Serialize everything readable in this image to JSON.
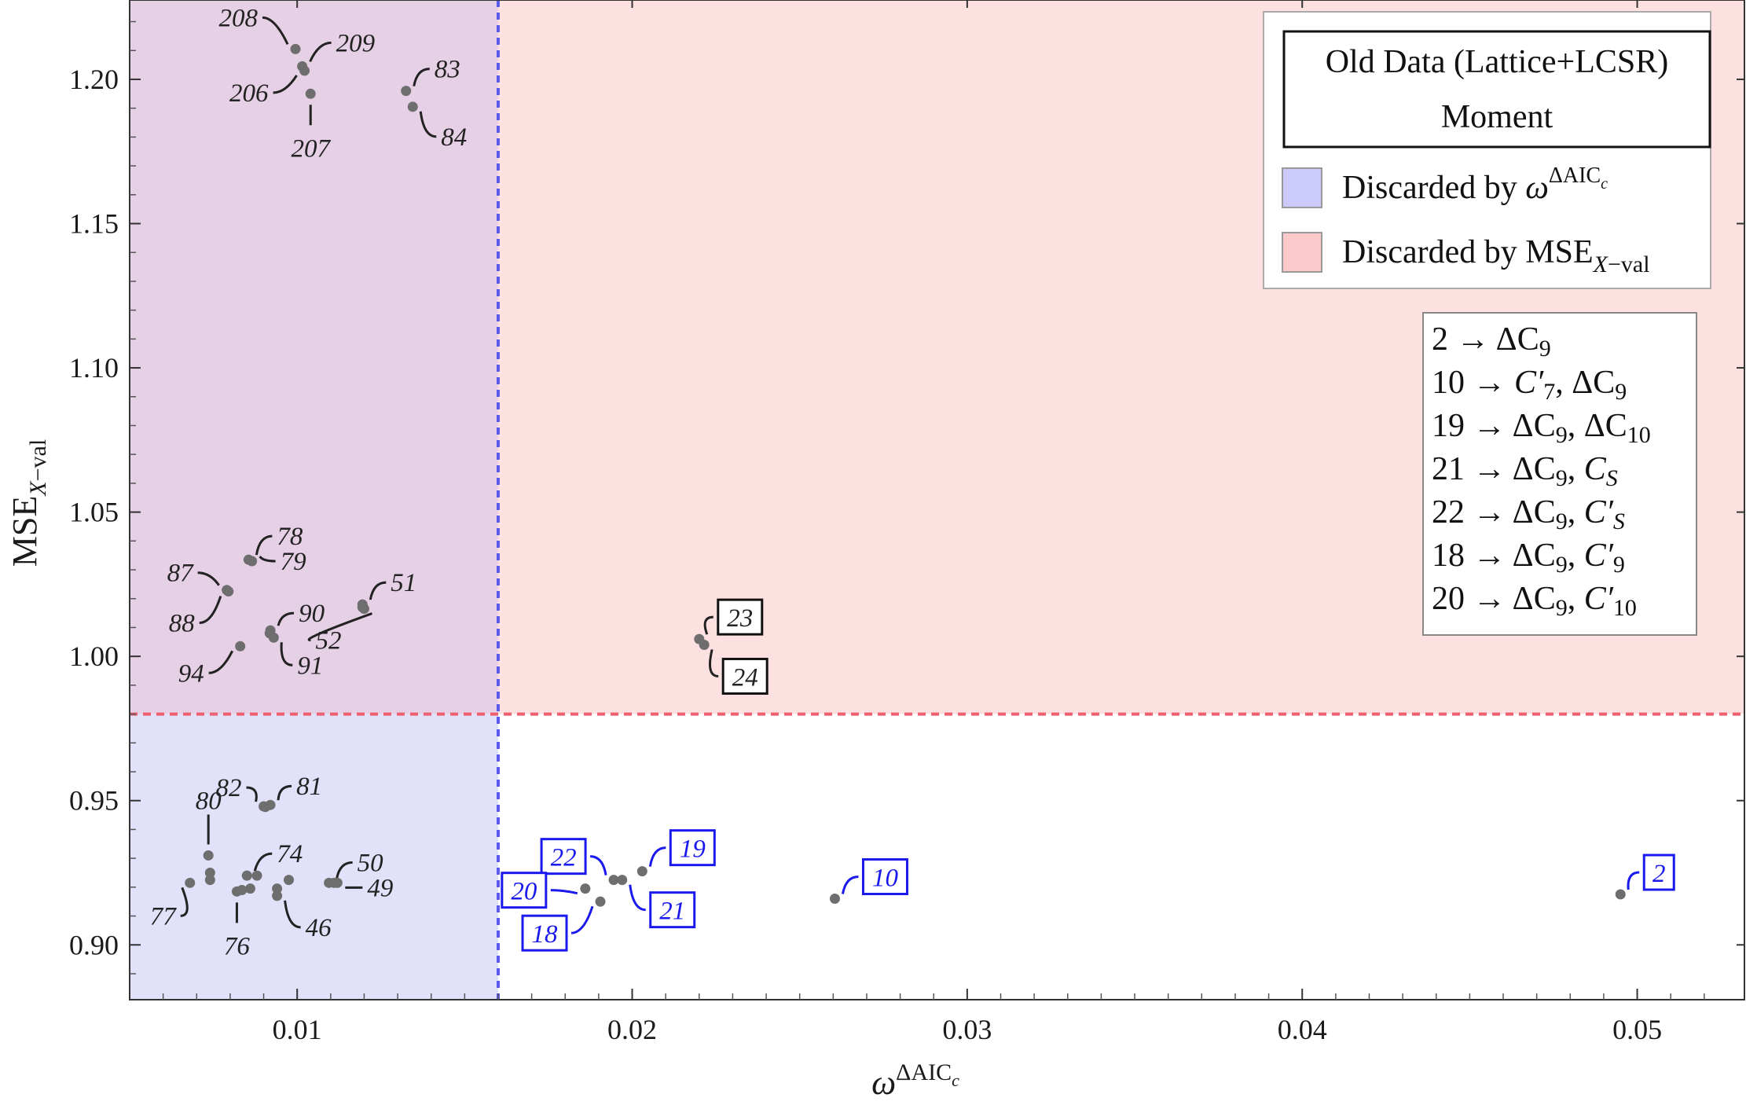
{
  "chart_data": {
    "type": "scatter",
    "xlabel": "ω^{ΔAIC_c}",
    "ylabel": "MSE_{X-val}",
    "xlim": [
      0.005,
      0.0532
    ],
    "ylim": [
      0.881,
      1.2275
    ],
    "x_ticks": [
      0.01,
      0.02,
      0.03,
      0.04,
      0.05
    ],
    "x_tick_labels": [
      "0.01",
      "0.02",
      "0.03",
      "0.04",
      "0.05"
    ],
    "y_ticks": [
      0.9,
      0.95,
      1.0,
      1.05,
      1.1,
      1.15,
      1.2
    ],
    "y_tick_labels": [
      "0.90",
      "0.95",
      "1.00",
      "1.05",
      "1.10",
      "1.15",
      "1.20"
    ],
    "thresholds": {
      "omega": 0.016,
      "mse": 0.98
    },
    "colors": {
      "blue_region": "#e1e1fa",
      "red_region": "#fde1e1",
      "overlap_region": "#e6d0e5",
      "blue_line": "#5a5aee",
      "red_line": "#ee6070",
      "point": "#6e6e6e",
      "blue_label": "#1a1aee"
    },
    "points": [
      {
        "id": "208",
        "x": 0.00995,
        "y": 1.2105
      },
      {
        "id": "209",
        "x": 0.01015,
        "y": 1.2045
      },
      {
        "id": "206",
        "x": 0.01022,
        "y": 1.203
      },
      {
        "id": "207",
        "x": 0.0104,
        "y": 1.195
      },
      {
        "id": "83",
        "x": 0.01325,
        "y": 1.196
      },
      {
        "id": "84",
        "x": 0.01345,
        "y": 1.1905
      },
      {
        "id": "78",
        "x": 0.00855,
        "y": 1.0335
      },
      {
        "id": "79",
        "x": 0.00865,
        "y": 1.033
      },
      {
        "id": "87",
        "x": 0.0079,
        "y": 1.023
      },
      {
        "id": "88",
        "x": 0.00795,
        "y": 1.0225
      },
      {
        "id": "51",
        "x": 0.01195,
        "y": 1.018
      },
      {
        "id": "52",
        "x": 0.012,
        "y": 1.0165
      },
      {
        "id": "90",
        "x": 0.0092,
        "y": 1.009
      },
      {
        "id": "91",
        "x": 0.0093,
        "y": 1.0065
      },
      {
        "id": "94",
        "x": 0.0083,
        "y": 1.0035
      },
      {
        "id": "82",
        "x": 0.009,
        "y": 0.948
      },
      {
        "id": "81",
        "x": 0.0092,
        "y": 0.9485
      },
      {
        "id": "80",
        "x": 0.00735,
        "y": 0.931
      },
      {
        "id": "74",
        "x": 0.0085,
        "y": 0.924
      },
      {
        "id": "50",
        "x": 0.01095,
        "y": 0.9215
      },
      {
        "id": "49",
        "x": 0.0112,
        "y": 0.9215
      },
      {
        "id": "77",
        "x": 0.0068,
        "y": 0.9215
      },
      {
        "id": "76",
        "x": 0.0082,
        "y": 0.9185
      },
      {
        "id": "46",
        "x": 0.0094,
        "y": 0.917
      },
      {
        "id": "22",
        "x": 0.01945,
        "y": 0.9225
      },
      {
        "id": "19",
        "x": 0.0203,
        "y": 0.9255
      },
      {
        "id": "20",
        "x": 0.0186,
        "y": 0.9195
      },
      {
        "id": "21",
        "x": 0.0197,
        "y": 0.9225
      },
      {
        "id": "18",
        "x": 0.01905,
        "y": 0.915
      },
      {
        "id": "23",
        "x": 0.022,
        "y": 1.006
      },
      {
        "id": "24",
        "x": 0.02215,
        "y": 1.004
      },
      {
        "id": "10",
        "x": 0.02605,
        "y": 0.916
      },
      {
        "id": "2",
        "x": 0.0495,
        "y": 0.9175
      }
    ],
    "extra_points": [
      {
        "x": 0.0074,
        "y": 0.9225
      },
      {
        "x": 0.0074,
        "y": 0.925
      },
      {
        "x": 0.0086,
        "y": 0.9195
      },
      {
        "x": 0.00975,
        "y": 0.9225
      },
      {
        "x": 0.0094,
        "y": 0.9195
      },
      {
        "x": 0.0088,
        "y": 0.924
      },
      {
        "x": 0.0111,
        "y": 0.9215
      },
      {
        "x": 0.00918,
        "y": 1.008
      },
      {
        "x": 0.01195,
        "y": 1.017
      },
      {
        "x": 0.00835,
        "y": 0.919
      },
      {
        "x": 0.00905,
        "y": 0.9478
      }
    ],
    "legend": {
      "title_line1": "Old Data (Lattice+LCSR)",
      "title_line2": "Moment",
      "entry_blue": "Discarded by ω^{ΔAIC_c}",
      "entry_red": "Discarded by MSE_{X-val}"
    },
    "model_map": [
      "2 → ΔC₉",
      "10 → C′₇, ΔC₉",
      "19 → ΔC₉, ΔC₁₀",
      "21 → ΔC₉, C_S",
      "22 → ΔC₉, C′_S",
      "18 → ΔC₉, C′₉",
      "20 → ΔC₉, C′₁₀"
    ]
  }
}
